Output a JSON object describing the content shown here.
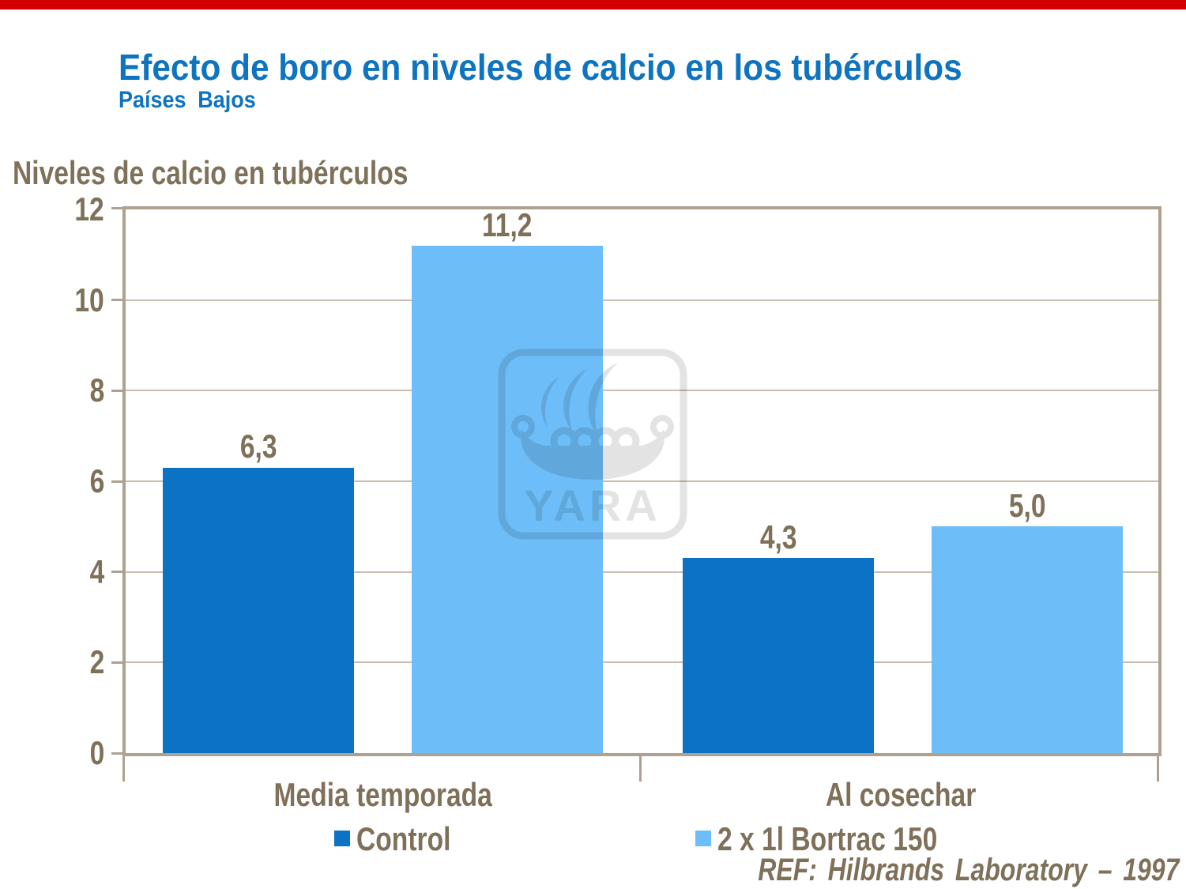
{
  "slide": {
    "top_strip_color": "#D40000",
    "title": "Efecto de boro en niveles de calcio en los tubérculos",
    "subtitle": "Países Bajos",
    "title_color": "#0E74C0"
  },
  "chart_data": {
    "type": "bar",
    "title": "Niveles de calcio en tubérculos",
    "categories": [
      "Media temporada",
      "Al cosechar"
    ],
    "series": [
      {
        "name": "Control",
        "color": "#0B72C4",
        "values": [
          6.3,
          4.3
        ],
        "value_labels": [
          "6,3",
          "4,3"
        ]
      },
      {
        "name": "2 x 1l Bortrac 150",
        "color": "#6CBDF8",
        "values": [
          11.2,
          5.0
        ],
        "value_labels": [
          "11,2",
          "5,0"
        ]
      }
    ],
    "ylabel": "",
    "ylim": [
      0,
      12
    ],
    "yticks": [
      0,
      2,
      4,
      6,
      8,
      10,
      12
    ],
    "grid": true,
    "legend_position": "bottom",
    "decimal_separator": ","
  },
  "legend": {
    "items": [
      {
        "label": "Control",
        "color": "#0B72C4"
      },
      {
        "label": "2 x 1l Bortrac 150",
        "color": "#6CBDF8"
      }
    ]
  },
  "watermark": {
    "label": "YARA"
  },
  "footer": {
    "reference": "REF: Hilbrands Laboratory – 1997"
  },
  "colors": {
    "text_brown": "#7F7059",
    "axis_frame": "#AEA18F",
    "gridline": "#C9BEAC",
    "watermark_gray": "#E3E3E3",
    "background": "#FFFFFF"
  }
}
